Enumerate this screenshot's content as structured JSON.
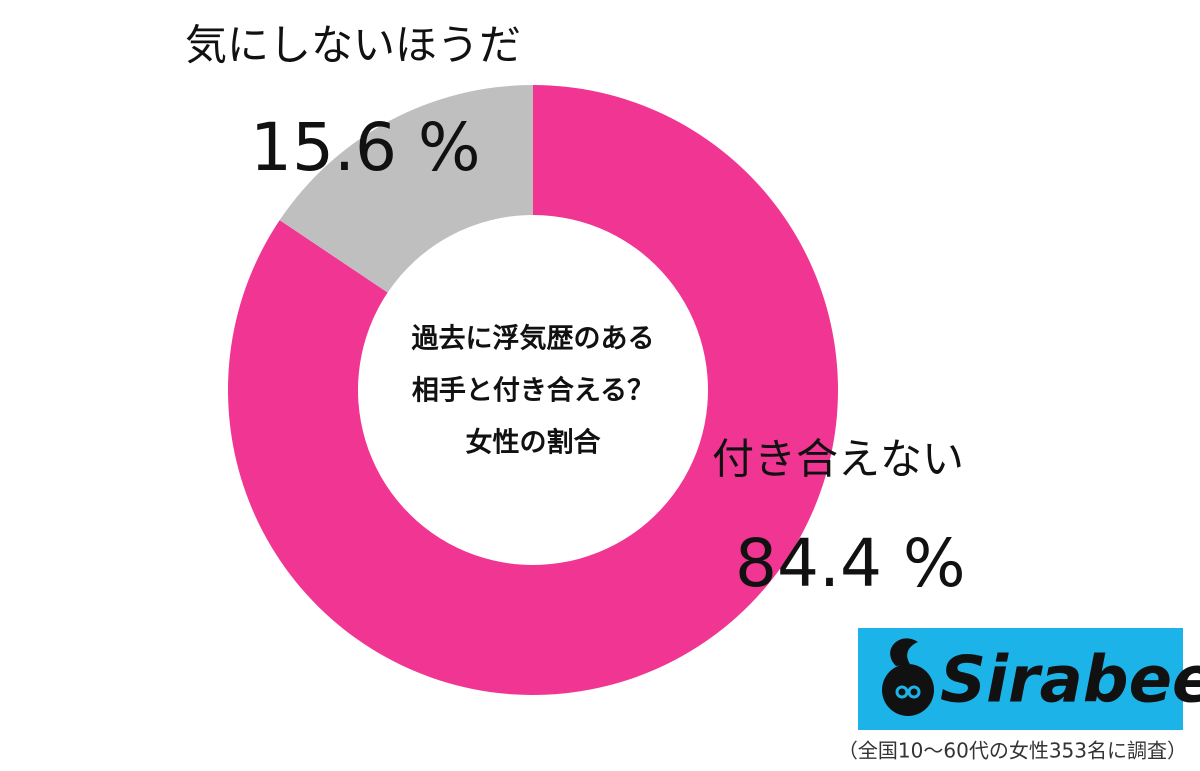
{
  "chart_data": {
    "type": "pie",
    "donut": true,
    "categories": [
      "付き合えない",
      "気にしないほうだ"
    ],
    "values": [
      84.4,
      15.6
    ],
    "value_labels": [
      "84.4 %",
      "15.6 %"
    ],
    "colors": [
      "#f13592",
      "#bfbfbf"
    ],
    "center_text": [
      "過去に浮気歴のある",
      "相手と付き合える？",
      "女性の割合"
    ],
    "logo": "Sirabee",
    "footnote": "（全国10～60代の女性353名に調査）"
  }
}
